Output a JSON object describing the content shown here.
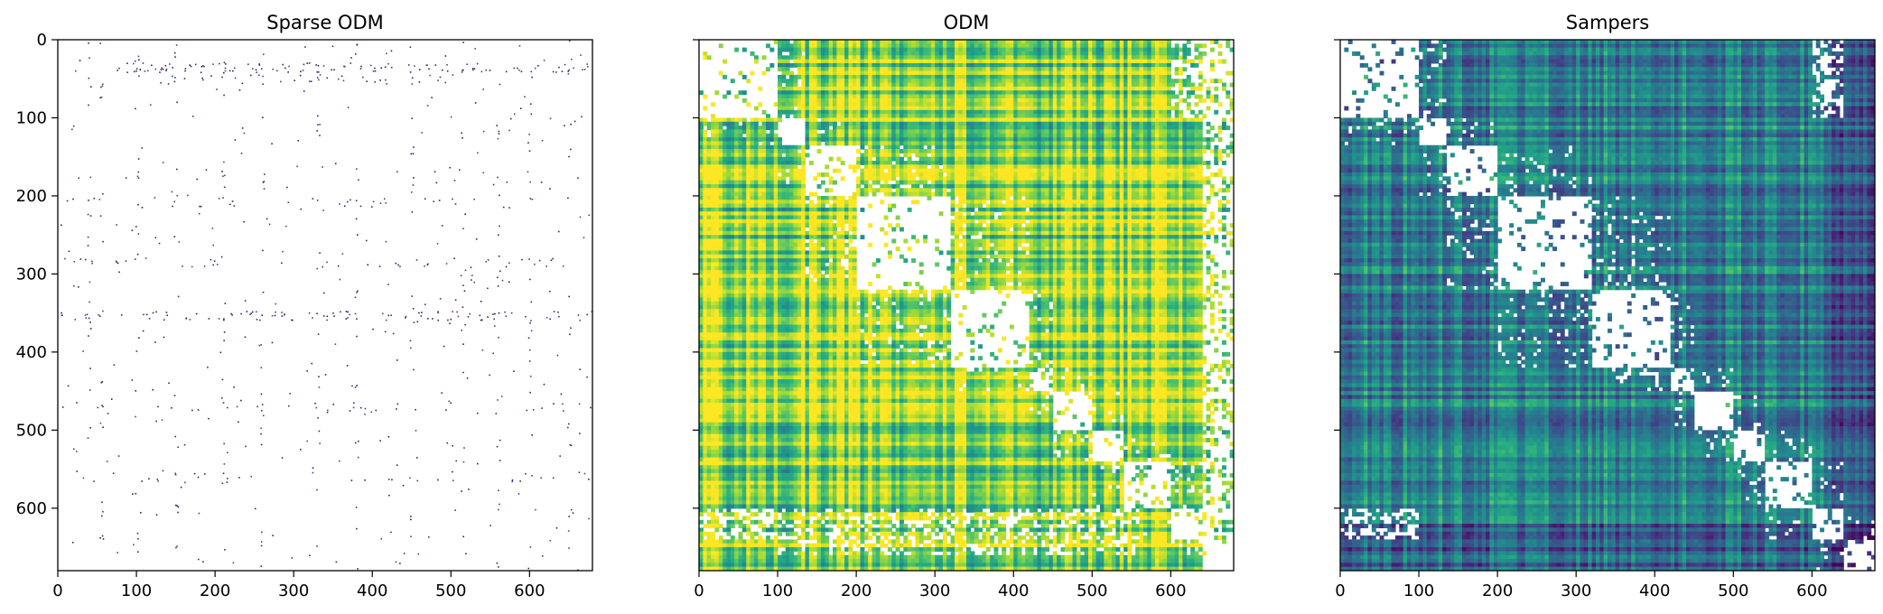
{
  "chart_data": [
    {
      "type": "heatmap",
      "title": "Sparse ODM",
      "colormap": "viridis",
      "xlim": [
        0,
        680
      ],
      "ylim": [
        680,
        0
      ],
      "xticks": [
        0,
        100,
        200,
        300,
        400,
        500,
        600
      ],
      "yticks": [
        0,
        100,
        200,
        300,
        400,
        500,
        600
      ],
      "show_y_tick_labels": true,
      "background": "#ffffff",
      "description_points": {
        "row_bands": [
          {
            "y": 35,
            "x_range": [
              70,
              680
            ],
            "density": 0.18
          },
          {
            "y": 50,
            "x_range": [
              70,
              520
            ],
            "density": 0.08
          },
          {
            "y": 208,
            "x_range": [
              0,
              660
            ],
            "density": 0.05
          },
          {
            "y": 285,
            "x_range": [
              0,
              660
            ],
            "density": 0.06
          },
          {
            "y": 353,
            "x_range": [
              0,
              680
            ],
            "density": 0.14
          },
          {
            "y": 470,
            "x_range": [
              0,
              680
            ],
            "density": 0.04
          },
          {
            "y": 560,
            "x_range": [
              0,
              680
            ],
            "density": 0.04
          }
        ],
        "background_density": 0.004
      }
    },
    {
      "type": "heatmap",
      "title": "ODM",
      "colormap": "viridis",
      "xlim": [
        0,
        680
      ],
      "ylim": [
        680,
        0
      ],
      "xticks": [
        0,
        100,
        200,
        300,
        400,
        500,
        600
      ],
      "yticks": [
        0,
        100,
        200,
        300,
        400,
        500,
        600
      ],
      "show_y_tick_labels": false,
      "base_value": 0.85,
      "blocks": [
        [
          0,
          100
        ],
        [
          100,
          135
        ],
        [
          135,
          200
        ],
        [
          200,
          320
        ],
        [
          320,
          420
        ],
        [
          420,
          450
        ],
        [
          450,
          500
        ],
        [
          500,
          540
        ],
        [
          540,
          600
        ],
        [
          600,
          640
        ],
        [
          640,
          680
        ]
      ],
      "white_columns": [
        [
          640,
          680
        ]
      ]
    },
    {
      "type": "heatmap",
      "title": "Sampers",
      "colormap": "viridis",
      "xlim": [
        0,
        680
      ],
      "ylim": [
        680,
        0
      ],
      "xticks": [
        0,
        100,
        200,
        300,
        400,
        500,
        600
      ],
      "yticks": [
        0,
        100,
        200,
        300,
        400,
        500,
        600
      ],
      "show_y_tick_labels": false,
      "base_value": 0.45,
      "blocks": [
        [
          0,
          100
        ],
        [
          100,
          135
        ],
        [
          135,
          200
        ],
        [
          200,
          320
        ],
        [
          320,
          420
        ],
        [
          420,
          450
        ],
        [
          450,
          500
        ],
        [
          500,
          540
        ],
        [
          540,
          600
        ],
        [
          600,
          640
        ],
        [
          640,
          680
        ]
      ]
    }
  ]
}
